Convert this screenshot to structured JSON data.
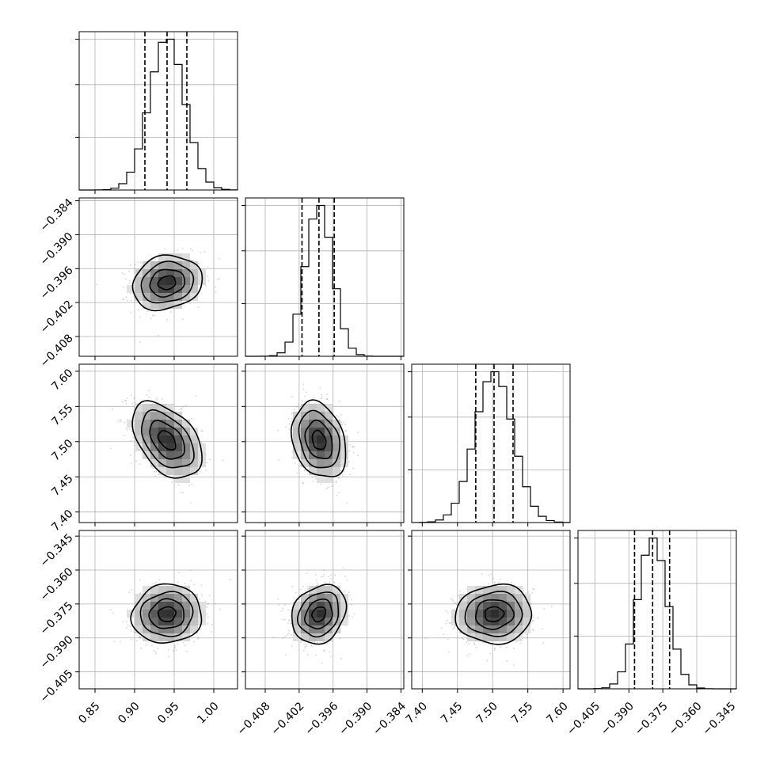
{
  "chart_data": {
    "type": "corner",
    "parameters": [
      {
        "mean": 0.941,
        "std": 0.022,
        "range": [
          0.83,
          1.03
        ],
        "ticks": [
          0.85,
          0.9,
          0.95,
          1.0
        ],
        "tick_labels": [
          "0.85",
          "0.90",
          "0.95",
          "1.00"
        ],
        "quantiles": [
          0.913,
          0.941,
          0.966
        ]
      },
      {
        "mean": -0.3985,
        "std": 0.0024,
        "range": [
          -0.4115,
          -0.3835
        ],
        "ticks": [
          -0.408,
          -0.402,
          -0.396,
          -0.39,
          -0.384
        ],
        "tick_labels": [
          "−0.408",
          "−0.402",
          "−0.396",
          "−0.390",
          "−0.384"
        ],
        "quantiles": [
          -0.4015,
          -0.3985,
          -0.3958
        ]
      },
      {
        "mean": 7.502,
        "std": 0.027,
        "range": [
          7.385,
          7.61
        ],
        "ticks": [
          7.4,
          7.45,
          7.5,
          7.55,
          7.6
        ],
        "tick_labels": [
          "7.40",
          "7.45",
          "7.50",
          "7.55",
          "7.60"
        ],
        "quantiles": [
          7.476,
          7.502,
          7.529
        ]
      },
      {
        "mean": -0.3795,
        "std": 0.0065,
        "range": [
          -0.4125,
          -0.3425
        ],
        "ticks": [
          -0.405,
          -0.39,
          -0.375,
          -0.36,
          -0.345
        ],
        "tick_labels": [
          "−0.405",
          "−0.390",
          "−0.375",
          "−0.360",
          "−0.345"
        ],
        "quantiles": [
          -0.3875,
          -0.3795,
          -0.372
        ]
      }
    ],
    "correlations": [
      [
        1.0,
        0.15,
        -0.45,
        0.05
      ],
      [
        0.15,
        1.0,
        -0.25,
        0.2
      ],
      [
        -0.45,
        -0.25,
        1.0,
        0.05
      ],
      [
        0.05,
        0.2,
        0.05,
        1.0
      ]
    ],
    "histogram_bins": 20,
    "contour_levels_sigma": [
      0.5,
      1.0,
      1.5,
      2.0
    ],
    "histogram_dashed_quantiles": [
      0.16,
      0.5,
      0.84
    ],
    "grid": true,
    "axis_labels": [
      "",
      "",
      "",
      ""
    ],
    "title": ""
  }
}
